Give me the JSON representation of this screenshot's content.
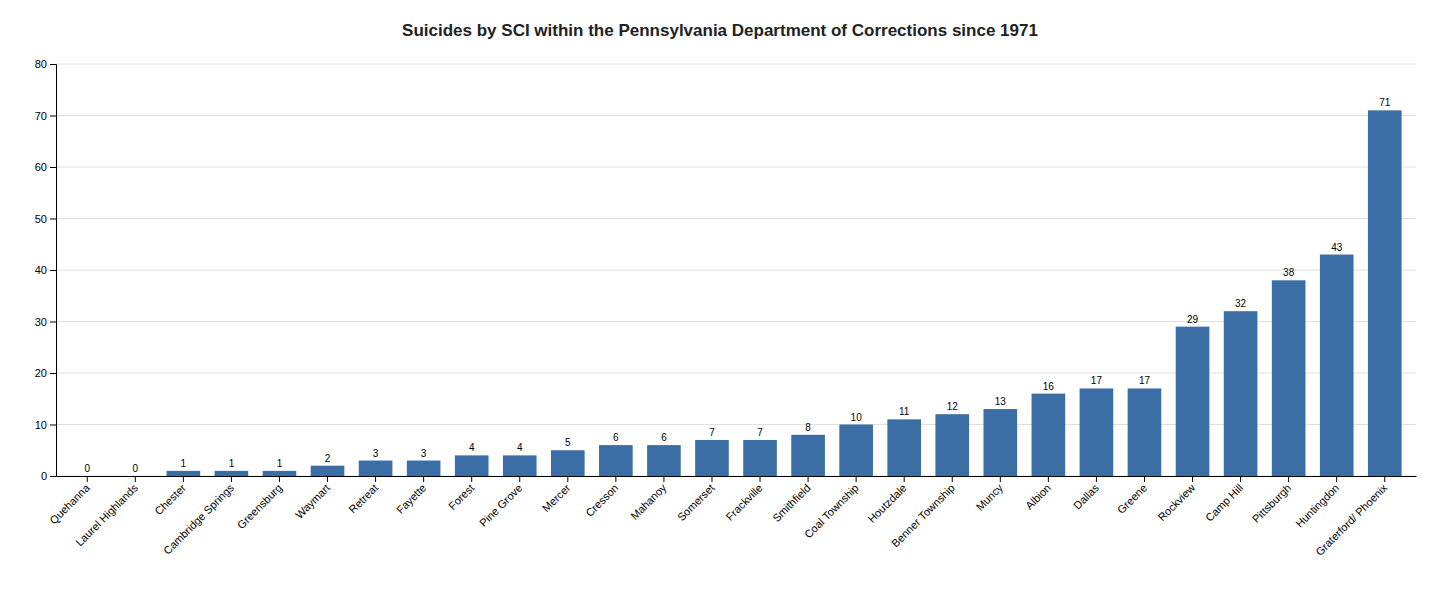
{
  "chart_data": {
    "type": "bar",
    "title": "Suicides by SCI within the Pennsylvania Department of Corrections since 1971",
    "categories": [
      "Quehanna",
      "Laurel Highlands",
      "Chester",
      "Cambridge Springs",
      "Greensburg",
      "Waymart",
      "Retreat",
      "Fayette",
      "Forest",
      "Pine Grove",
      "Mercer",
      "Cresson",
      "Mahanoy",
      "Somerset",
      "Frackville",
      "Smithfield",
      "Coal Township",
      "Houtzdale",
      "Benner Township",
      "Muncy",
      "Albion",
      "Dallas",
      "Greene",
      "Rockview",
      "Camp Hill",
      "Pittsburgh",
      "Huntingdon",
      "Graterford/ Phoenix"
    ],
    "values": [
      0,
      0,
      1,
      1,
      1,
      2,
      3,
      3,
      4,
      4,
      5,
      6,
      6,
      7,
      7,
      8,
      10,
      11,
      12,
      13,
      16,
      17,
      17,
      29,
      32,
      38,
      43,
      71
    ],
    "color": "#3a6ea5",
    "ylim": [
      0,
      80
    ],
    "yticks": [
      0,
      10,
      20,
      30,
      40,
      50,
      60,
      70,
      80
    ],
    "grid": true,
    "data_labels": true
  }
}
